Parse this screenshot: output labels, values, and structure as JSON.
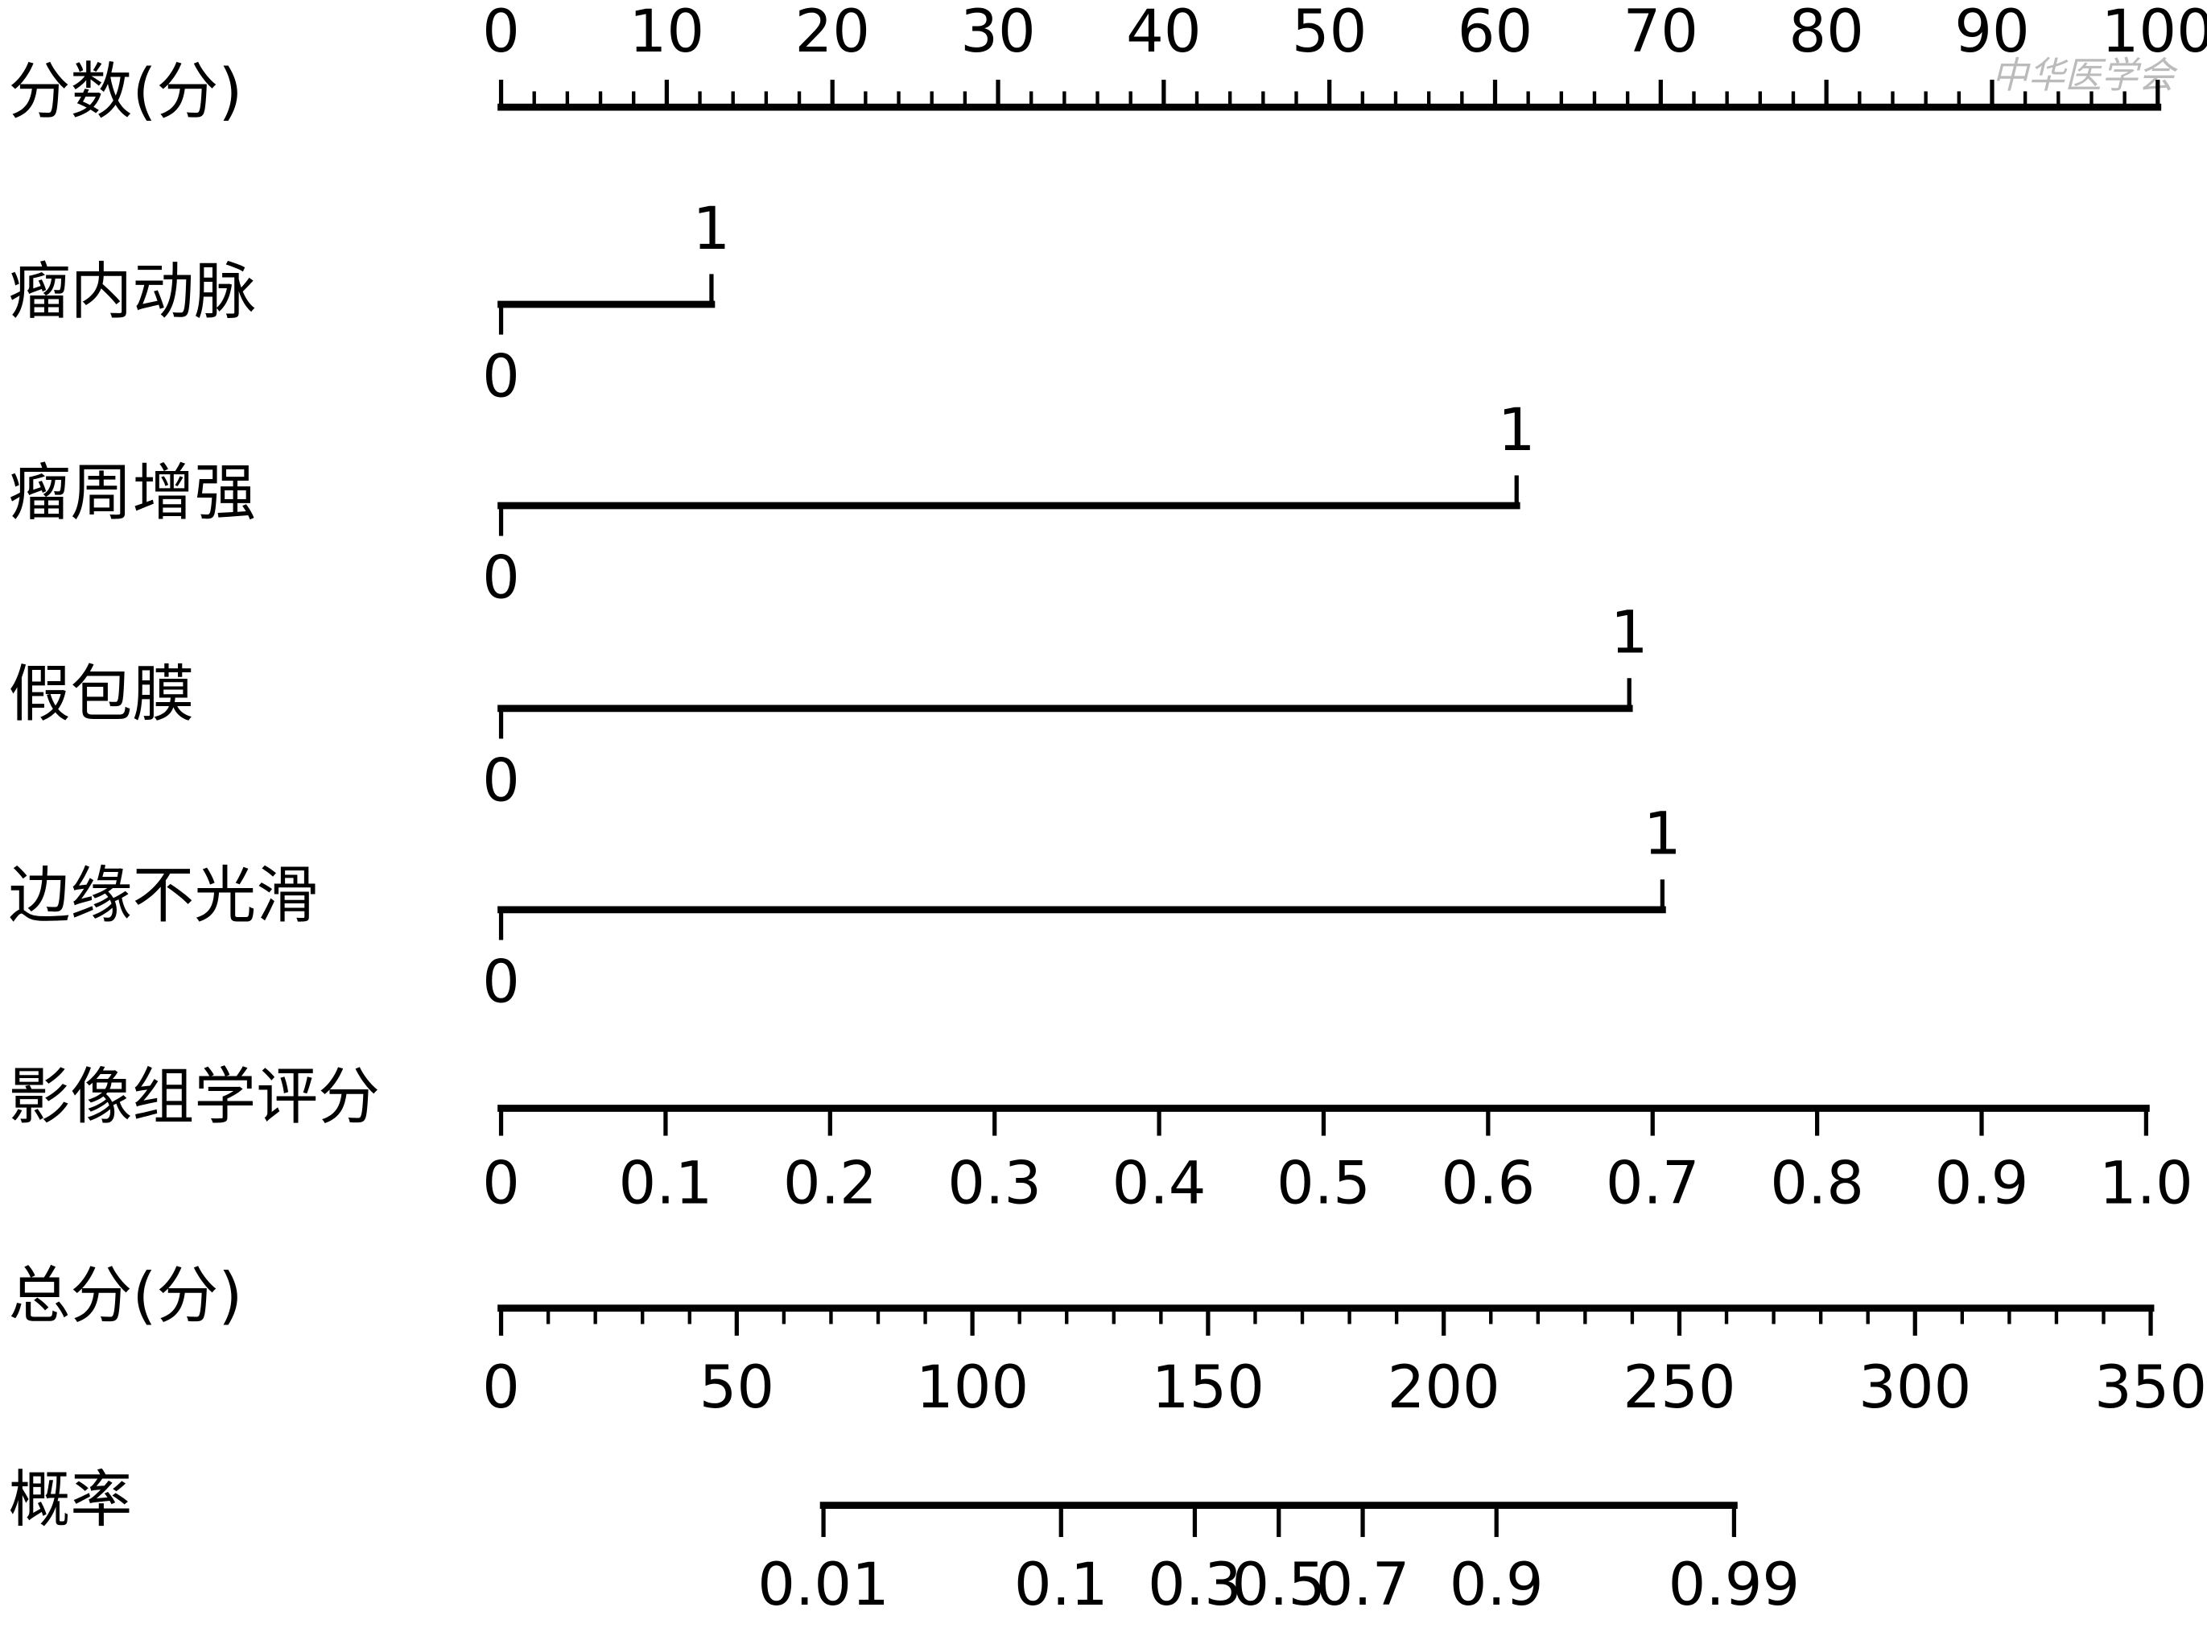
{
  "chart_data": {
    "type": "nomogram",
    "watermark": "中华医学会",
    "points": {
      "label": "分数(分)",
      "lim": [
        0,
        100
      ],
      "ticks": [
        0,
        10,
        20,
        30,
        40,
        50,
        60,
        70,
        80,
        90,
        100
      ],
      "minor_step": 2
    },
    "variables": [
      {
        "label": "瘤内动脉",
        "levels": [
          0,
          1
        ],
        "points": [
          0,
          12.7
        ]
      },
      {
        "label": "瘤周增强",
        "levels": [
          0,
          1
        ],
        "points": [
          0,
          61.3
        ]
      },
      {
        "label": "假包膜",
        "levels": [
          0,
          1
        ],
        "points": [
          0,
          68.1
        ]
      },
      {
        "label": "边缘不光滑",
        "levels": [
          0,
          1
        ],
        "points": [
          0,
          70.1
        ]
      }
    ],
    "radiomics": {
      "label": "影像组学评分",
      "lim": [
        0,
        1
      ],
      "points_range": [
        0,
        99.3
      ],
      "ticks": [
        0,
        0.1,
        0.2,
        0.3,
        0.4,
        0.5,
        0.6,
        0.7,
        0.8,
        0.9,
        {
          "value": 1,
          "label": "1.0"
        }
      ]
    },
    "total": {
      "label": "总分(分)",
      "lim": [
        0,
        350
      ],
      "ticks": [
        0,
        50,
        100,
        150,
        200,
        250,
        300,
        350
      ],
      "minor_step": 10
    },
    "probability": {
      "label": "概率",
      "scale": "logit",
      "lim": [
        0.01,
        0.99
      ],
      "total_points_range": [
        68.4,
        261.6
      ],
      "ticks": [
        0.01,
        0.1,
        0.3,
        0.5,
        0.7,
        0.9,
        0.99
      ]
    }
  }
}
